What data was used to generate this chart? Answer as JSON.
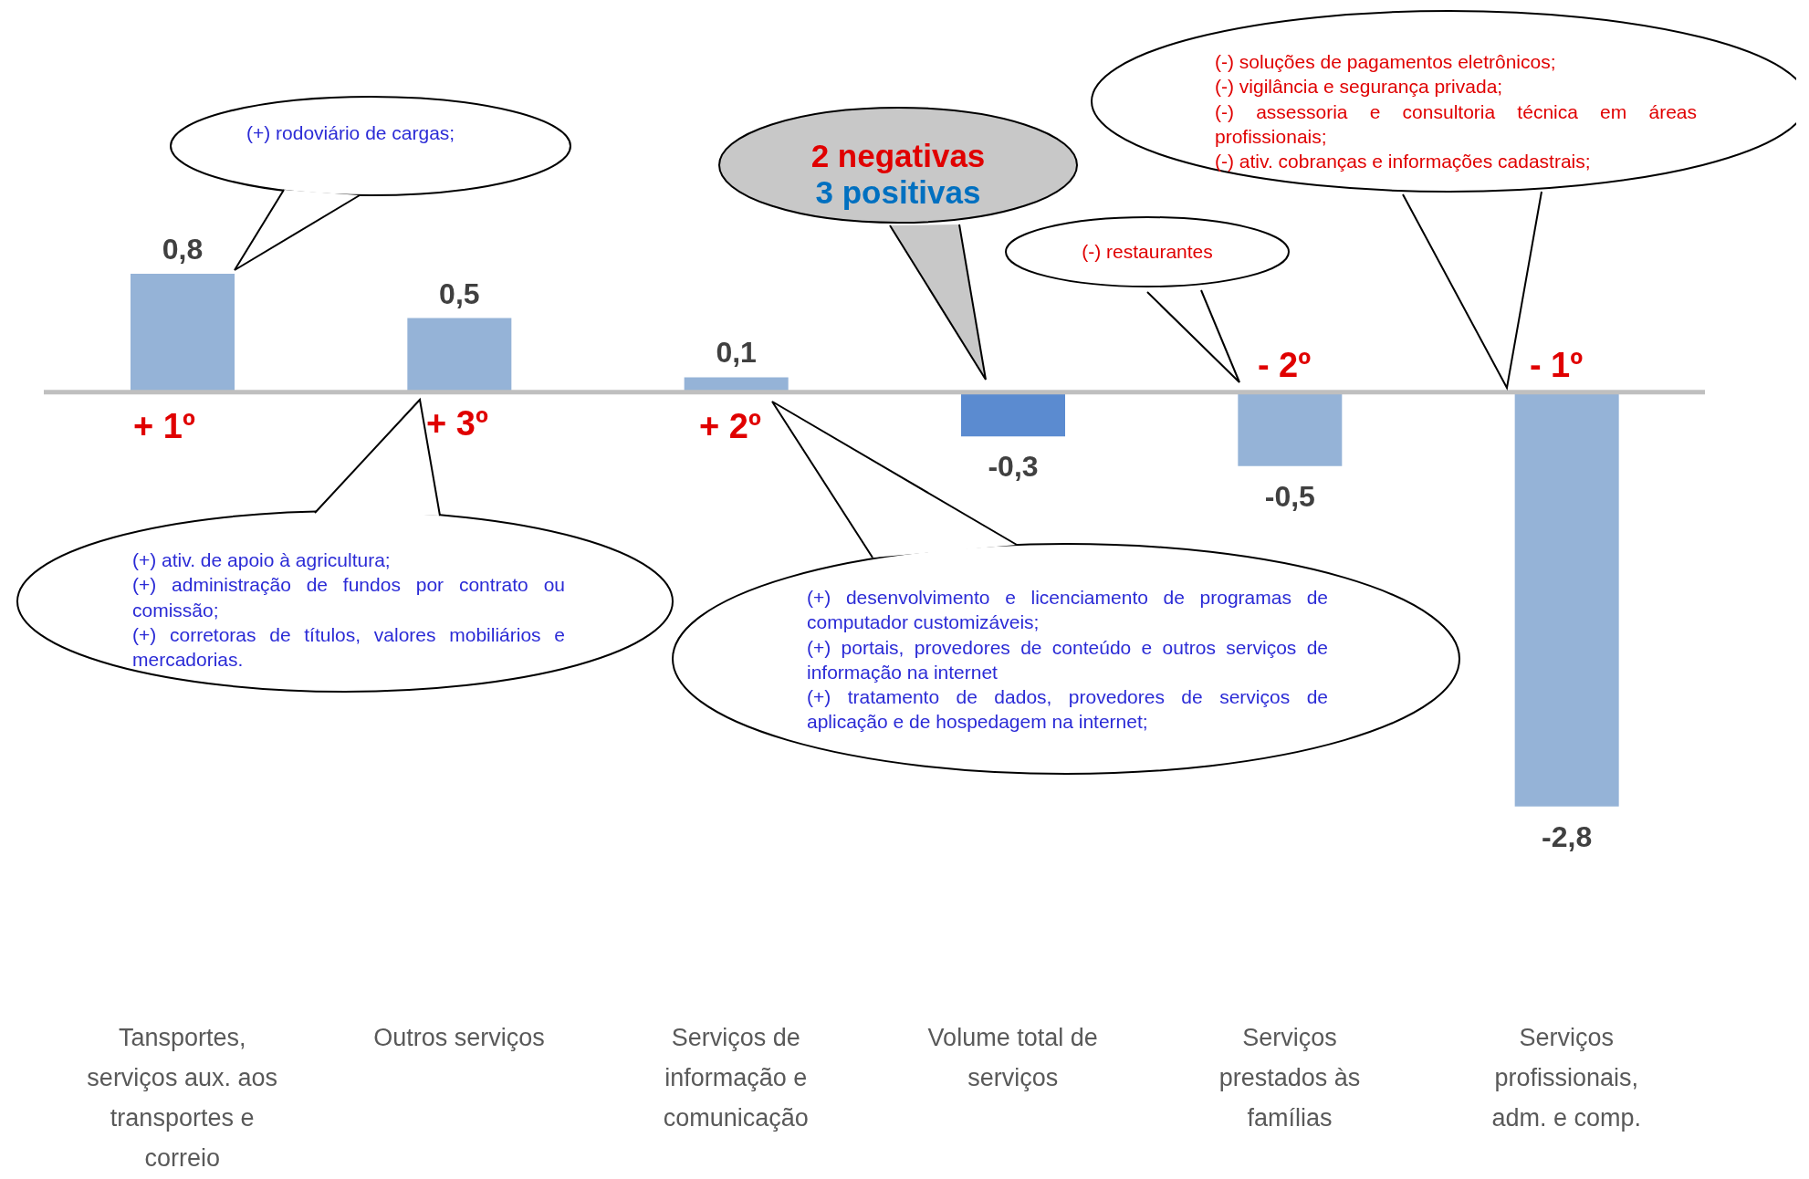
{
  "chart_data": {
    "type": "bar",
    "categories": [
      "Tansportes, serviços aux. aos transportes e correio",
      "Outros serviços",
      "Serviços de informação e comunicação",
      "Volume total de serviços",
      "Serviços prestados às famílias",
      "Serviços profissionais, adm. e comp."
    ],
    "values": [
      0.8,
      0.5,
      0.1,
      -0.3,
      -0.5,
      -2.8
    ],
    "value_labels": [
      "0,8",
      "0,5",
      "0,1",
      "-0,3",
      "-0,5",
      "-2,8"
    ],
    "colors": [
      "#95b3d7",
      "#95b3d7",
      "#95b3d7",
      "#5b8bd0",
      "#95b3d7",
      "#95b3d7"
    ],
    "annotations": [
      "+ 1º",
      "+ 3º",
      "+ 2º",
      "- 2º",
      "- 1º",
      "(+) rodoviário de cargas;",
      "(+) ativ. de apoio à agricultura;\n(+) administração de fundos por contrato ou comissão;\n(+) corretoras de títulos, valores mobiliários e mercadorias.",
      "(+) desenvolvimento e licenciamento de programas de computador customizáveis;\n(+) portais, provedores de conteúdo e outros serviços de informação na internet\n(+) tratamento de dados, provedores de serviços de aplicação e de hospedagem na internet;",
      "2 negativas",
      "3 positivas",
      "(-) restaurantes",
      "(-) soluções de pagamentos eletrônicos;\n(-) vigilância e segurança privada;\n(-) assessoria e consultoria técnica em áreas profissionais;\n(-) ativ. cobranças e informações cadastrais;"
    ]
  }
}
